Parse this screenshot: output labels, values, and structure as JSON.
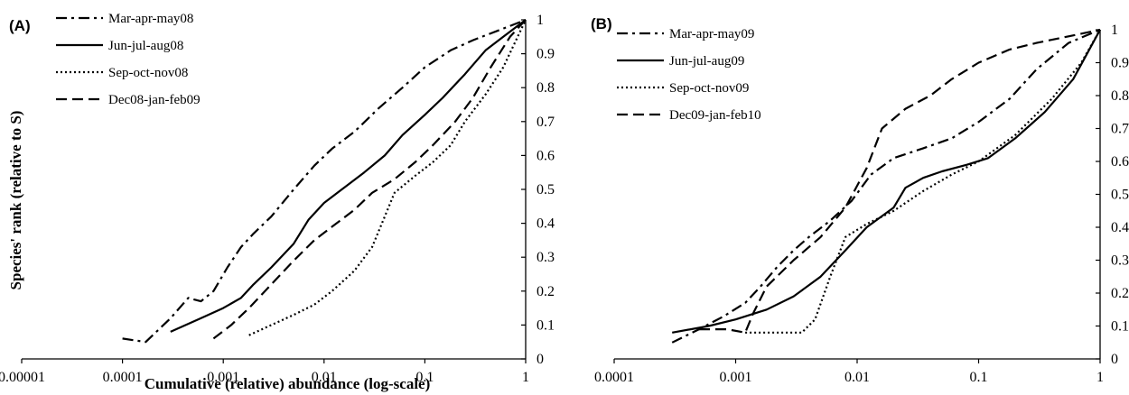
{
  "chart_data": [
    {
      "panel": "(A)",
      "type": "line",
      "xlabel": "Cumulative (relative) abundance (log-scale)",
      "ylabel": "Species' rank (relative to S)",
      "xscale": "log",
      "xlim": [
        1e-05,
        1
      ],
      "ylim": [
        0,
        1
      ],
      "x_ticks": [
        "0.00001",
        "0.0001",
        "0.001",
        "0.01",
        "0.1",
        "1"
      ],
      "y_ticks": [
        "0",
        "0.1",
        "0.2",
        "0.3",
        "0.4",
        "0.5",
        "0.6",
        "0.7",
        "0.8",
        "0.9",
        "1"
      ],
      "y_axis_side": "right",
      "legend_position": "top-left",
      "series": [
        {
          "name": "Mar-apr-may08",
          "style": "dashdot",
          "x": [
            0.0001,
            0.00017,
            0.0003,
            0.00045,
            0.0006,
            0.0008,
            0.0011,
            0.0015,
            0.002,
            0.003,
            0.005,
            0.008,
            0.012,
            0.02,
            0.035,
            0.06,
            0.1,
            0.18,
            0.3,
            0.55,
            1
          ],
          "y": [
            0.06,
            0.05,
            0.12,
            0.18,
            0.17,
            0.2,
            0.27,
            0.33,
            0.37,
            0.42,
            0.5,
            0.57,
            0.62,
            0.67,
            0.74,
            0.8,
            0.86,
            0.91,
            0.94,
            0.97,
            1.0
          ]
        },
        {
          "name": "Jun-jul-aug08",
          "style": "solid",
          "x": [
            0.0003,
            0.0006,
            0.001,
            0.0015,
            0.002,
            0.003,
            0.005,
            0.007,
            0.01,
            0.015,
            0.025,
            0.04,
            0.06,
            0.1,
            0.15,
            0.25,
            0.4,
            0.6,
            1
          ],
          "y": [
            0.08,
            0.12,
            0.15,
            0.18,
            0.22,
            0.27,
            0.34,
            0.41,
            0.46,
            0.5,
            0.55,
            0.6,
            0.66,
            0.72,
            0.77,
            0.84,
            0.91,
            0.95,
            1.0
          ]
        },
        {
          "name": "Sep-oct-nov08",
          "style": "dotted",
          "x": [
            0.0018,
            0.003,
            0.005,
            0.008,
            0.012,
            0.02,
            0.03,
            0.04,
            0.05,
            0.08,
            0.12,
            0.18,
            0.25,
            0.4,
            0.6,
            1
          ],
          "y": [
            0.07,
            0.1,
            0.13,
            0.16,
            0.2,
            0.26,
            0.33,
            0.42,
            0.49,
            0.54,
            0.58,
            0.63,
            0.7,
            0.78,
            0.86,
            1.0
          ]
        },
        {
          "name": "Dec08-jan-feb09",
          "style": "dashed",
          "x": [
            0.0008,
            0.0012,
            0.0018,
            0.003,
            0.005,
            0.008,
            0.012,
            0.02,
            0.03,
            0.05,
            0.08,
            0.12,
            0.2,
            0.3,
            0.45,
            0.7,
            1
          ],
          "y": [
            0.06,
            0.1,
            0.15,
            0.22,
            0.29,
            0.35,
            0.39,
            0.44,
            0.49,
            0.53,
            0.58,
            0.63,
            0.7,
            0.77,
            0.86,
            0.95,
            1.0
          ]
        }
      ]
    },
    {
      "panel": "(B)",
      "type": "line",
      "xlabel": "",
      "ylabel": "",
      "xscale": "log",
      "xlim": [
        0.0001,
        1
      ],
      "ylim": [
        0,
        1
      ],
      "x_ticks": [
        "0.0001",
        "0.001",
        "0.01",
        "0.1",
        "1"
      ],
      "y_ticks": [
        "0",
        "0.1",
        "0.2",
        "0.3",
        "0.4",
        "0.5",
        "0.6",
        "0.7",
        "0.8",
        "0.9",
        "1"
      ],
      "y_axis_side": "right",
      "legend_position": "top-left",
      "series": [
        {
          "name": "Mar-apr-may09",
          "style": "dashdot",
          "x": [
            0.0003,
            0.0005,
            0.0008,
            0.0012,
            0.0016,
            0.0022,
            0.003,
            0.004,
            0.006,
            0.009,
            0.013,
            0.02,
            0.035,
            0.06,
            0.1,
            0.18,
            0.3,
            0.55,
            1
          ],
          "y": [
            0.05,
            0.09,
            0.13,
            0.17,
            0.22,
            0.28,
            0.33,
            0.37,
            0.42,
            0.48,
            0.56,
            0.61,
            0.64,
            0.67,
            0.72,
            0.79,
            0.88,
            0.96,
            1.0
          ]
        },
        {
          "name": "Jun-jul-aug09",
          "style": "solid",
          "x": [
            0.0003,
            0.0006,
            0.001,
            0.0018,
            0.003,
            0.005,
            0.008,
            0.012,
            0.02,
            0.025,
            0.035,
            0.05,
            0.08,
            0.12,
            0.2,
            0.35,
            0.6,
            1
          ],
          "y": [
            0.08,
            0.1,
            0.12,
            0.15,
            0.19,
            0.25,
            0.33,
            0.4,
            0.46,
            0.52,
            0.55,
            0.57,
            0.59,
            0.61,
            0.67,
            0.75,
            0.85,
            1.0
          ]
        },
        {
          "name": "Sep-oct-nov09",
          "style": "dotted",
          "x": [
            0.0012,
            0.002,
            0.0035,
            0.0045,
            0.006,
            0.008,
            0.012,
            0.02,
            0.035,
            0.06,
            0.1,
            0.2,
            0.4,
            0.7,
            1
          ],
          "y": [
            0.08,
            0.08,
            0.08,
            0.12,
            0.25,
            0.37,
            0.41,
            0.45,
            0.51,
            0.56,
            0.6,
            0.68,
            0.79,
            0.9,
            1.0
          ]
        },
        {
          "name": "Dec09-jan-feb10",
          "style": "dashed",
          "x": [
            0.0005,
            0.00085,
            0.0012,
            0.0014,
            0.0018,
            0.003,
            0.005,
            0.008,
            0.012,
            0.016,
            0.025,
            0.04,
            0.06,
            0.1,
            0.18,
            0.3,
            0.55,
            1
          ],
          "y": [
            0.09,
            0.09,
            0.08,
            0.14,
            0.22,
            0.3,
            0.37,
            0.46,
            0.58,
            0.7,
            0.76,
            0.8,
            0.85,
            0.9,
            0.94,
            0.96,
            0.98,
            1.0
          ]
        }
      ]
    }
  ]
}
